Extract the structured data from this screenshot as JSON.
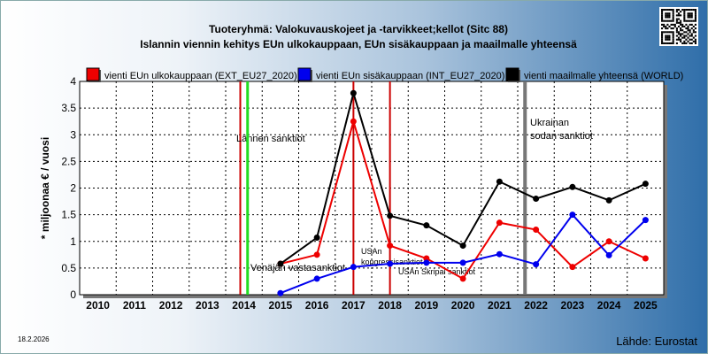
{
  "title": "Tuoteryhmä: Valokuvauskojeet ja -tarvikkeet;kellot (Sitc 88)",
  "subtitle": "Islannin viennin kehitys EUn ulkokauppaan, EUn sisäkauppaan ja maailmalle yhteensä",
  "date": "18.2.2026",
  "source": "Lähde: Eurostat",
  "colors": {
    "ext": "#ee0000",
    "int": "#0000ee",
    "world": "#000000",
    "marker_red": "#cc0000",
    "marker_green": "#22dd22",
    "marker_gray": "#777777"
  },
  "chart_data": {
    "type": "line",
    "ylabel": "* miljoonaa € / vuosi",
    "ylim": [
      0,
      4
    ],
    "yticks": [
      "0",
      "0.5",
      "1",
      "1.5",
      "2",
      "2.5",
      "3",
      "3.5",
      "4"
    ],
    "categories": [
      "2010",
      "2011",
      "2012",
      "2013",
      "2014",
      "2015",
      "2016",
      "2017",
      "2018",
      "2019",
      "2020",
      "2021",
      "2022",
      "2023",
      "2024",
      "2025"
    ],
    "grid": true,
    "legend": "top",
    "series": [
      {
        "key": "ext",
        "name": "vienti EUn ulkokauppaan (EXT_EU27_2020)",
        "values": [
          null,
          null,
          null,
          null,
          null,
          0.58,
          0.75,
          3.25,
          0.92,
          0.68,
          0.3,
          1.35,
          1.22,
          0.52,
          1.0,
          0.68
        ]
      },
      {
        "key": "int",
        "name": "vienti EUn sisäkauppaan (INT_EU27_2020)",
        "values": [
          null,
          null,
          null,
          null,
          null,
          0.03,
          0.3,
          0.52,
          0.58,
          0.6,
          0.6,
          0.76,
          0.57,
          1.5,
          0.74,
          1.4
        ]
      },
      {
        "key": "world",
        "name": "vienti maailmalle yhteensä (WORLD)",
        "values": [
          null,
          null,
          null,
          null,
          null,
          0.58,
          1.07,
          3.78,
          1.48,
          1.3,
          0.92,
          2.12,
          1.8,
          2.02,
          1.77,
          2.08
        ]
      }
    ],
    "annotations": [
      {
        "label": "Lännen sanktiot",
        "x": 2013.9,
        "color": "marker_red"
      },
      {
        "label": "",
        "x": 2014.1,
        "color": "marker_green"
      },
      {
        "label": "Venäjän vastasanktiot",
        "x": 2014.1,
        "color": "marker_green"
      },
      {
        "label": "USAn kongressisanktiot",
        "x": 2017.0,
        "color": "marker_red"
      },
      {
        "label": "USAn Skripal sanktiot",
        "x": 2018.0,
        "color": "marker_red"
      },
      {
        "label": "Ukrainan sodan sanktiot",
        "x": 2021.7,
        "color": "marker_gray"
      }
    ]
  }
}
